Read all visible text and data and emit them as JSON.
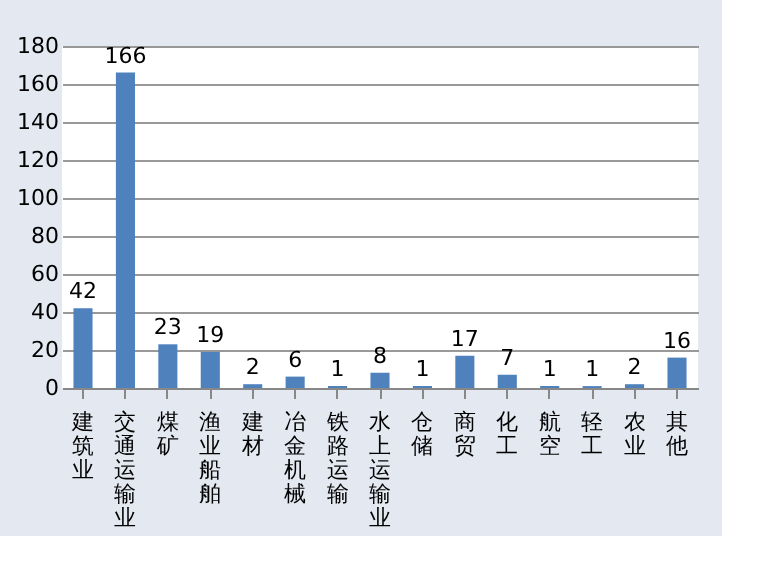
{
  "chart_data": {
    "type": "bar",
    "categories": [
      "建筑业",
      "交通运输业",
      "煤矿",
      "渔业船舶",
      "建材",
      "冶金机械",
      "铁路运输",
      "水上运输业",
      "仓储",
      "商贸",
      "化工",
      "航空",
      "轻工",
      "农业",
      "其他"
    ],
    "values": [
      42,
      166,
      23,
      19,
      2,
      6,
      1,
      8,
      1,
      17,
      7,
      1,
      1,
      2,
      16
    ],
    "color": "#4f81bd",
    "ylim": [
      0,
      180
    ],
    "yticks": [
      0,
      20,
      40,
      60,
      80,
      100,
      120,
      140,
      160,
      180
    ],
    "grid": "y",
    "data_labels": true
  }
}
